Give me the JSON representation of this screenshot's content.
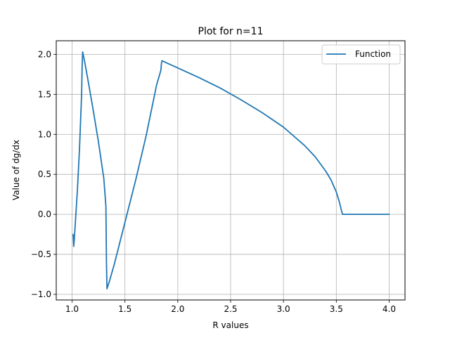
{
  "chart_data": {
    "type": "line",
    "title": "Plot for n=11",
    "xlabel": "R values",
    "ylabel": "Value of dg/dx",
    "xlim": [
      0.85,
      4.15
    ],
    "ylim": [
      -1.07,
      2.17
    ],
    "xticks": [
      1.0,
      1.5,
      2.0,
      2.5,
      3.0,
      3.5,
      4.0
    ],
    "xtick_labels": [
      "1.0",
      "1.5",
      "2.0",
      "2.5",
      "3.0",
      "3.5",
      "4.0"
    ],
    "yticks": [
      -1.0,
      -0.5,
      0.0,
      0.5,
      1.0,
      1.5,
      2.0
    ],
    "ytick_labels": [
      "−1.0",
      "−0.5",
      "0.0",
      "0.5",
      "1.0",
      "1.5",
      "2.0"
    ],
    "grid": true,
    "legend_position": "top-right",
    "series": [
      {
        "name": "Function",
        "color": "#1f77b4",
        "x": [
          1.01,
          1.015,
          1.02,
          1.03,
          1.05,
          1.07,
          1.09,
          1.095,
          1.1,
          1.12,
          1.15,
          1.2,
          1.25,
          1.3,
          1.32,
          1.325,
          1.33,
          1.35,
          1.4,
          1.5,
          1.6,
          1.7,
          1.8,
          1.84,
          1.845,
          1.85,
          1.9,
          2.0,
          2.2,
          2.4,
          2.6,
          2.8,
          3.0,
          3.2,
          3.3,
          3.4,
          3.45,
          3.5,
          3.53,
          3.55,
          3.56,
          4.0
        ],
        "y": [
          -0.25,
          -0.4,
          -0.33,
          -0.12,
          0.3,
          0.82,
          1.5,
          1.85,
          2.03,
          1.9,
          1.68,
          1.3,
          0.9,
          0.45,
          0.1,
          -0.6,
          -0.93,
          -0.85,
          -0.62,
          -0.1,
          0.42,
          0.98,
          1.62,
          1.8,
          1.88,
          1.92,
          1.89,
          1.83,
          1.71,
          1.58,
          1.43,
          1.27,
          1.09,
          0.86,
          0.72,
          0.54,
          0.43,
          0.28,
          0.15,
          0.04,
          0.0,
          0.0
        ]
      }
    ]
  }
}
